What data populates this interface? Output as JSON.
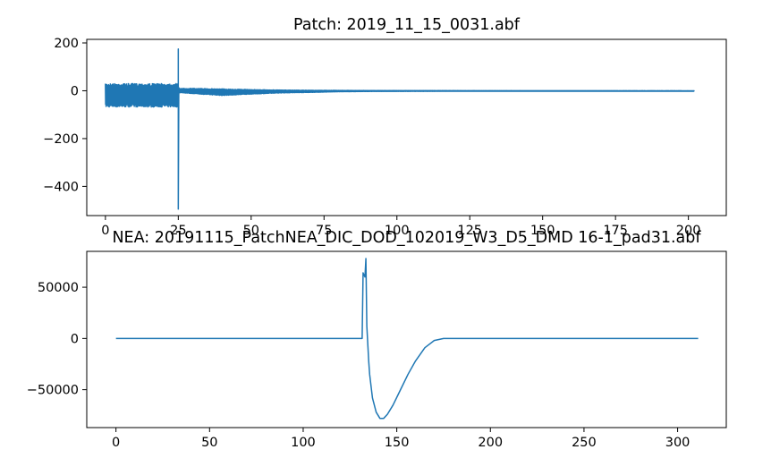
{
  "chart_data": [
    {
      "type": "line",
      "title": "Patch: 2019_11_15_0031.abf",
      "xlabel": "",
      "ylabel": "",
      "xlim": [
        -6.4,
        213
      ],
      "ylim": [
        -522,
        215
      ],
      "grid": false,
      "x_ticks": [
        0,
        25,
        50,
        75,
        100,
        125,
        150,
        175,
        200
      ],
      "x_tick_labels": [
        "0",
        "25",
        "50",
        "75",
        "100",
        "125",
        "150",
        "175",
        "200"
      ],
      "y_ticks": [
        200,
        0,
        -200,
        -400
      ],
      "y_tick_labels": [
        "200",
        "0",
        "−200",
        "−400"
      ],
      "series": [
        {
          "color": "#1f77b4",
          "x": [
            0,
            24.9,
            25.0,
            25.1,
            25.2,
            25.4,
            30,
            40,
            50,
            60,
            70,
            80,
            90,
            100,
            125,
            150,
            175,
            202
          ],
          "upper": [
            30,
            30,
            175,
            15,
            12,
            10,
            10,
            8,
            5,
            3,
            2,
            1.5,
            1,
            0.8,
            0.5,
            0.3,
            0.2,
            0
          ],
          "lower": [
            -68,
            -68,
            -495,
            -10,
            -8,
            -8,
            -12,
            -20,
            -14,
            -9,
            -7,
            -4,
            -3,
            -2.5,
            -2,
            -2,
            -2,
            -2
          ]
        }
      ]
    },
    {
      "type": "line",
      "title": "NEA: 20191115_PatchNEA_DIC_DOD_102019_W3_D5_DMD 16-1_pad31.abf",
      "xlabel": "",
      "ylabel": "",
      "xlim": [
        -15.6,
        326
      ],
      "ylim": [
        -87000,
        85000
      ],
      "grid": false,
      "x_ticks": [
        0,
        50,
        100,
        150,
        200,
        250,
        300
      ],
      "x_tick_labels": [
        "0",
        "50",
        "100",
        "150",
        "200",
        "250",
        "300"
      ],
      "y_ticks": [
        50000,
        0,
        -50000
      ],
      "y_tick_labels": [
        "50000",
        "0",
        "−50000"
      ],
      "series": [
        {
          "color": "#1f77b4",
          "x": [
            0,
            131.5,
            132,
            132.5,
            133,
            133.5,
            134,
            134.5,
            135,
            135.5,
            137,
            139,
            141,
            143,
            145,
            148,
            152,
            156,
            160,
            165,
            170,
            175,
            200,
            250,
            311
          ],
          "y": [
            0,
            0,
            64000,
            62000,
            60000,
            78000,
            12000,
            -5000,
            -22000,
            -35000,
            -58000,
            -72000,
            -78000,
            -78000,
            -74000,
            -65000,
            -50000,
            -35000,
            -22000,
            -9000,
            -2000,
            0,
            0,
            0,
            0
          ]
        }
      ]
    }
  ]
}
